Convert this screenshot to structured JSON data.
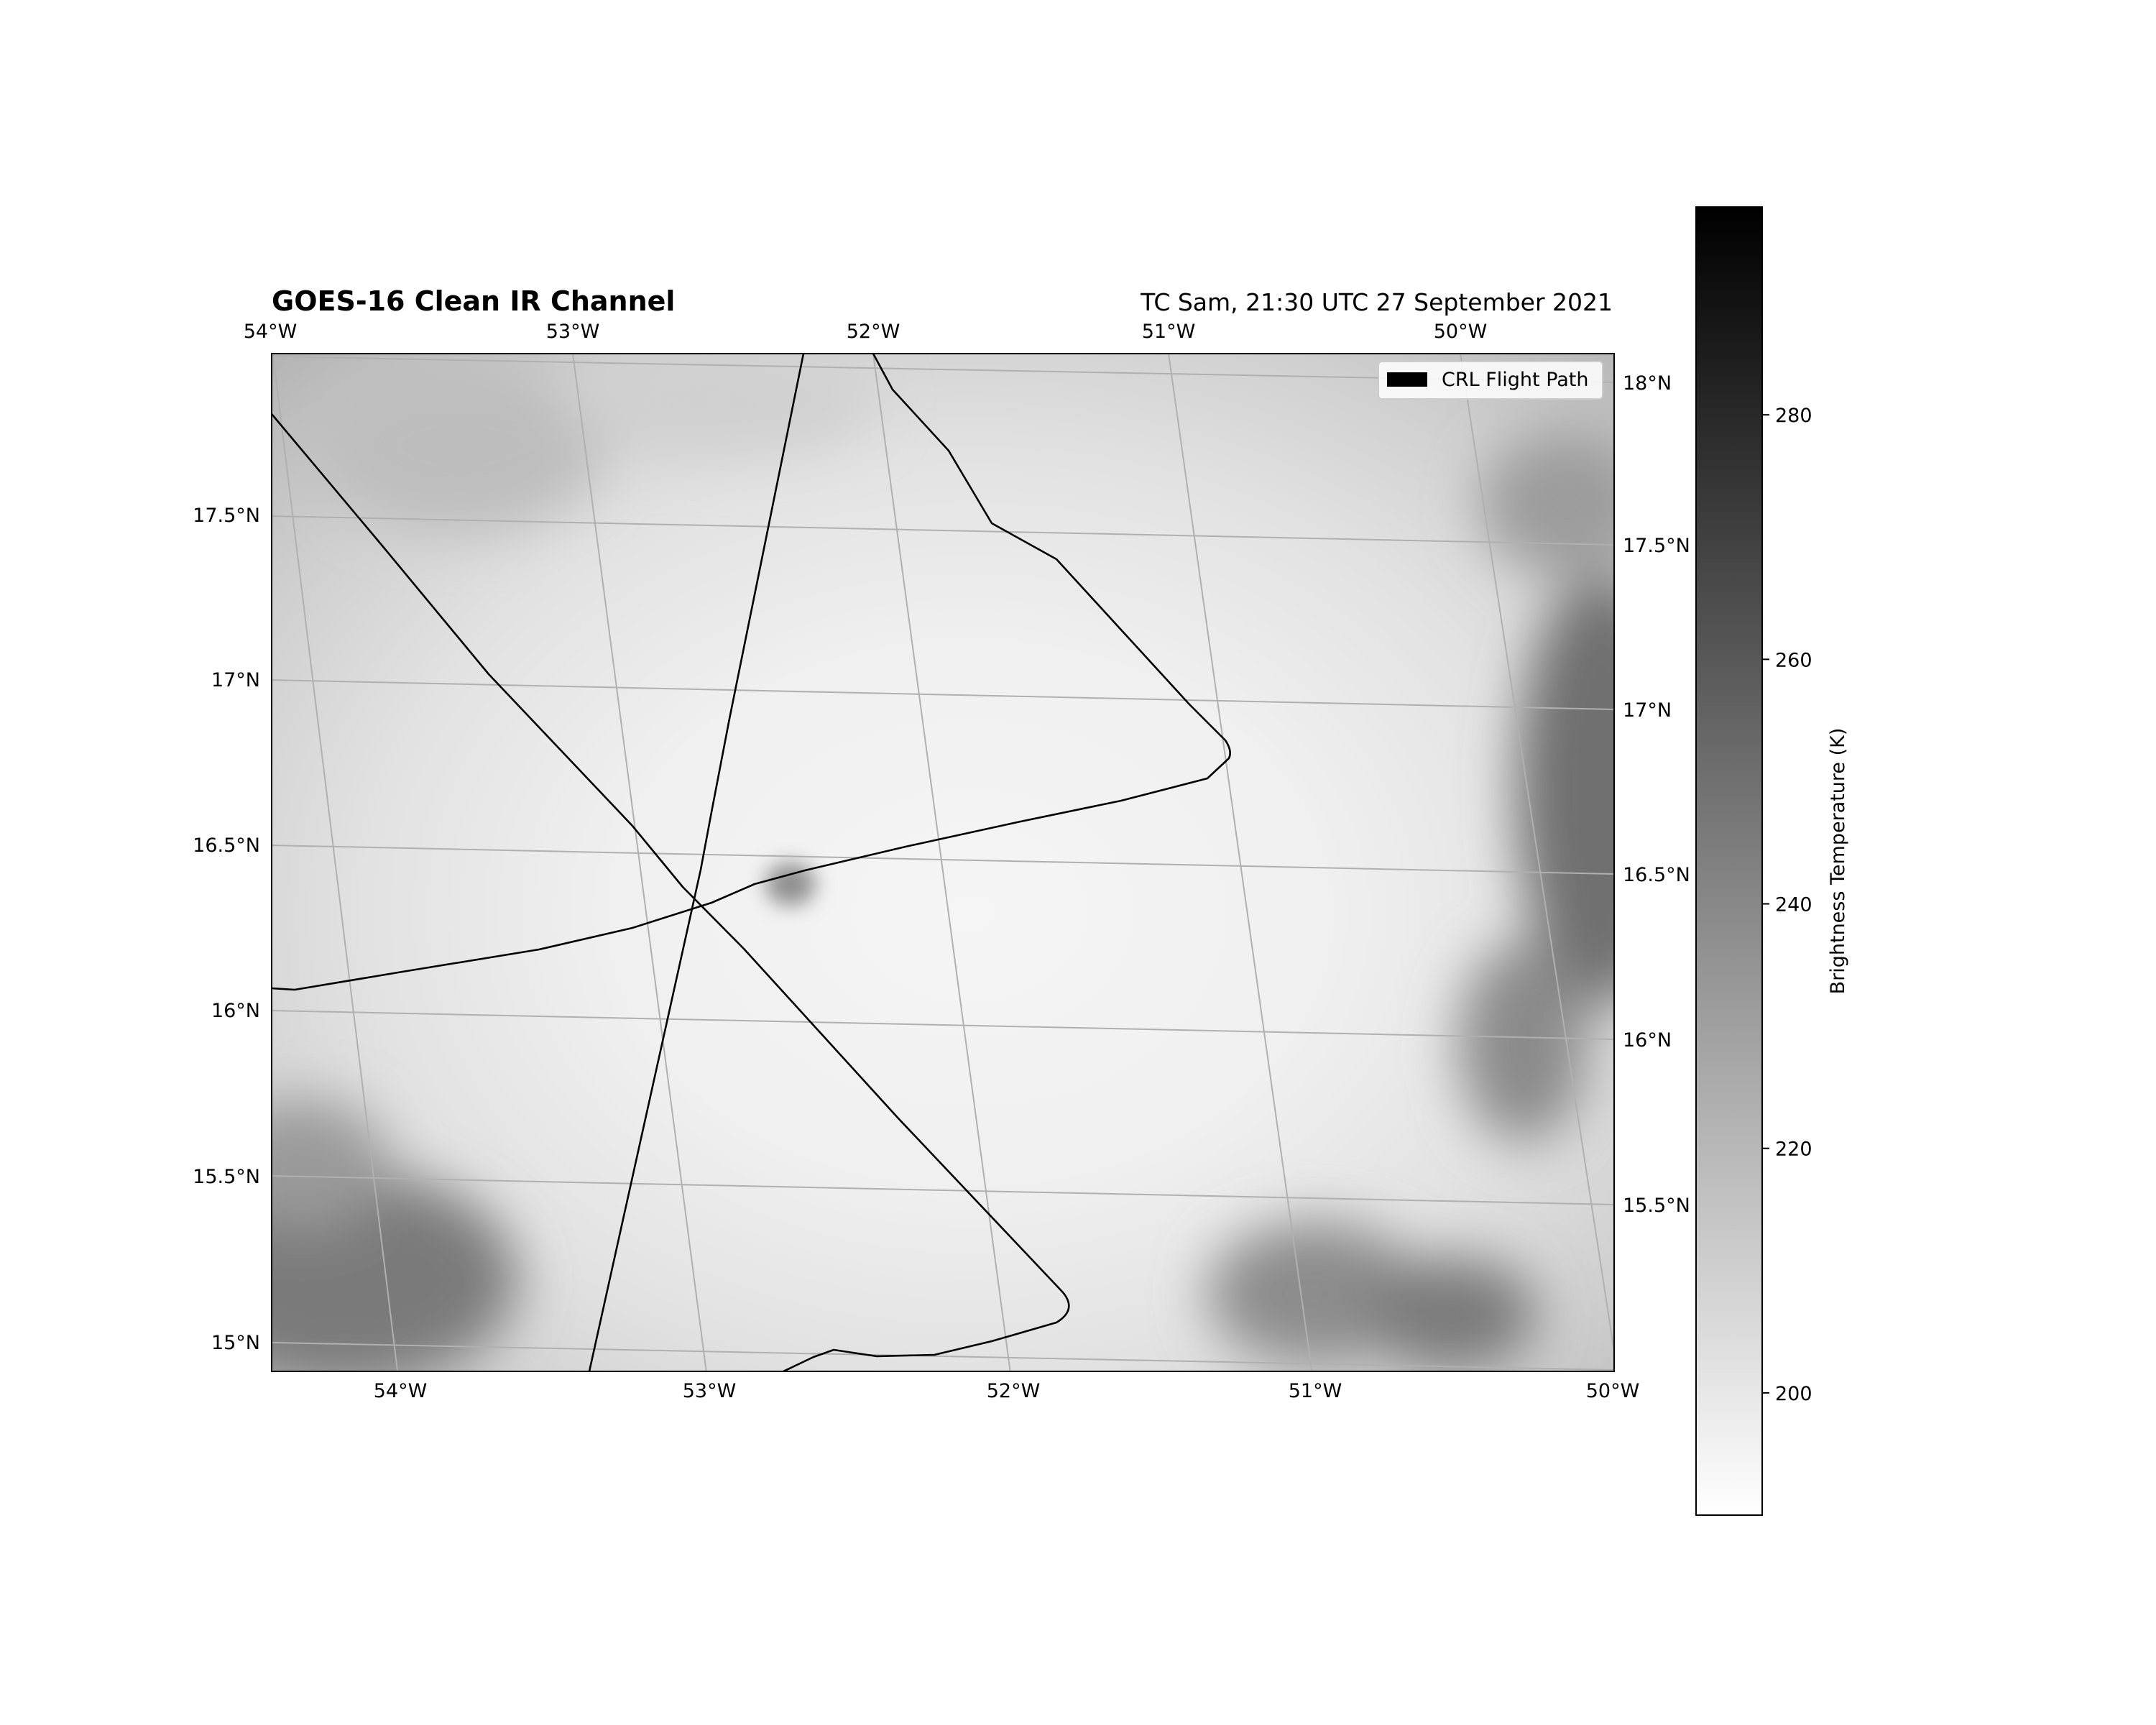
{
  "title": "GOES-16 Clean IR Channel",
  "subtitle": "TC Sam, 21:30 UTC 27 September 2021",
  "legend": {
    "label": "CRL Flight Path",
    "placement": "top-right"
  },
  "colorbar": {
    "label": "Brightness Temperature (K)",
    "ticks": [
      "200",
      "220",
      "240",
      "260",
      "280"
    ],
    "tick_values": [
      200,
      220,
      240,
      260,
      280
    ],
    "range": [
      190,
      297
    ],
    "colormap": "gray_r"
  },
  "axes": {
    "top_lon_labels": [
      "54°W",
      "53°W",
      "52°W",
      "51°W",
      "50°W"
    ],
    "bottom_lon_labels": [
      "54°W",
      "53°W",
      "52°W",
      "51°W",
      "50°W"
    ],
    "left_lat_labels": [
      "17.5°N",
      "17°N",
      "16.5°N",
      "16°N",
      "15.5°N",
      "15°N"
    ],
    "right_lat_labels": [
      "18°N",
      "17.5°N",
      "17°N",
      "16.5°N",
      "16°N",
      "15.5°N"
    ]
  },
  "chart_data": {
    "type": "map",
    "projection": "tilted lat/lon graticule",
    "lon_range": [
      -54.4,
      -50.0
    ],
    "lat_range": [
      14.9,
      18.1
    ],
    "graticule": {
      "lon_step": 1,
      "lat_step": 0.5,
      "grid": true
    },
    "background": "infrared brightness temperature imagery (grayscale)",
    "colors": {
      "flight_path": "#000000",
      "gridlines": "#b0b0b0"
    }
  }
}
